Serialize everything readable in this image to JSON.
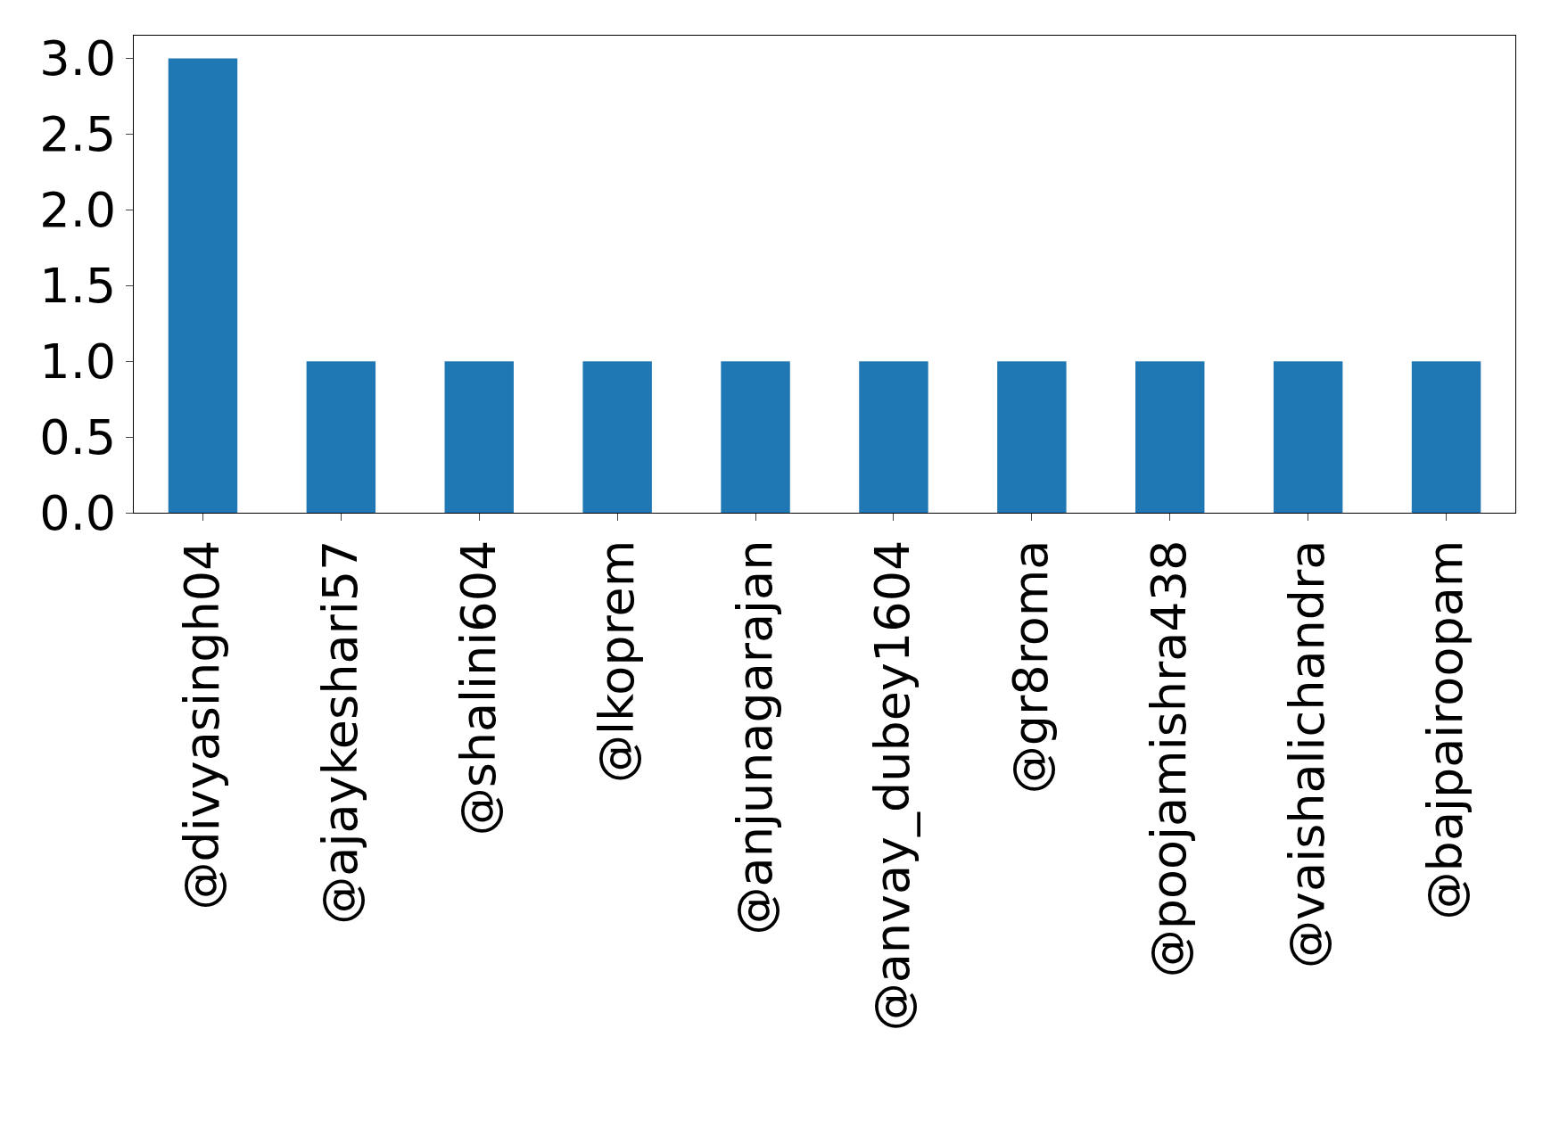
{
  "chart_data": {
    "type": "bar",
    "categories": [
      "@divyasingh04",
      "@ajaykeshari57",
      "@shalini604",
      "@lkoprem",
      "@anjunagarajan",
      "@anvay_dubey1604",
      "@gr8roma",
      "@poojamishra438",
      "@vaishalichandra",
      "@bajpairoopam"
    ],
    "values": [
      3,
      1,
      1,
      1,
      1,
      1,
      1,
      1,
      1,
      1
    ],
    "color": "#1f77b4",
    "ylim": [
      0,
      3.15
    ],
    "yticks": [
      {
        "value": 0,
        "label": "0.0"
      },
      {
        "value": 0.5,
        "label": "0.5"
      },
      {
        "value": 1,
        "label": "1.0"
      },
      {
        "value": 1.5,
        "label": "1.5"
      },
      {
        "value": 2,
        "label": "2.0"
      },
      {
        "value": 2.5,
        "label": "2.5"
      },
      {
        "value": 3,
        "label": "3.0"
      }
    ],
    "legend": false
  }
}
